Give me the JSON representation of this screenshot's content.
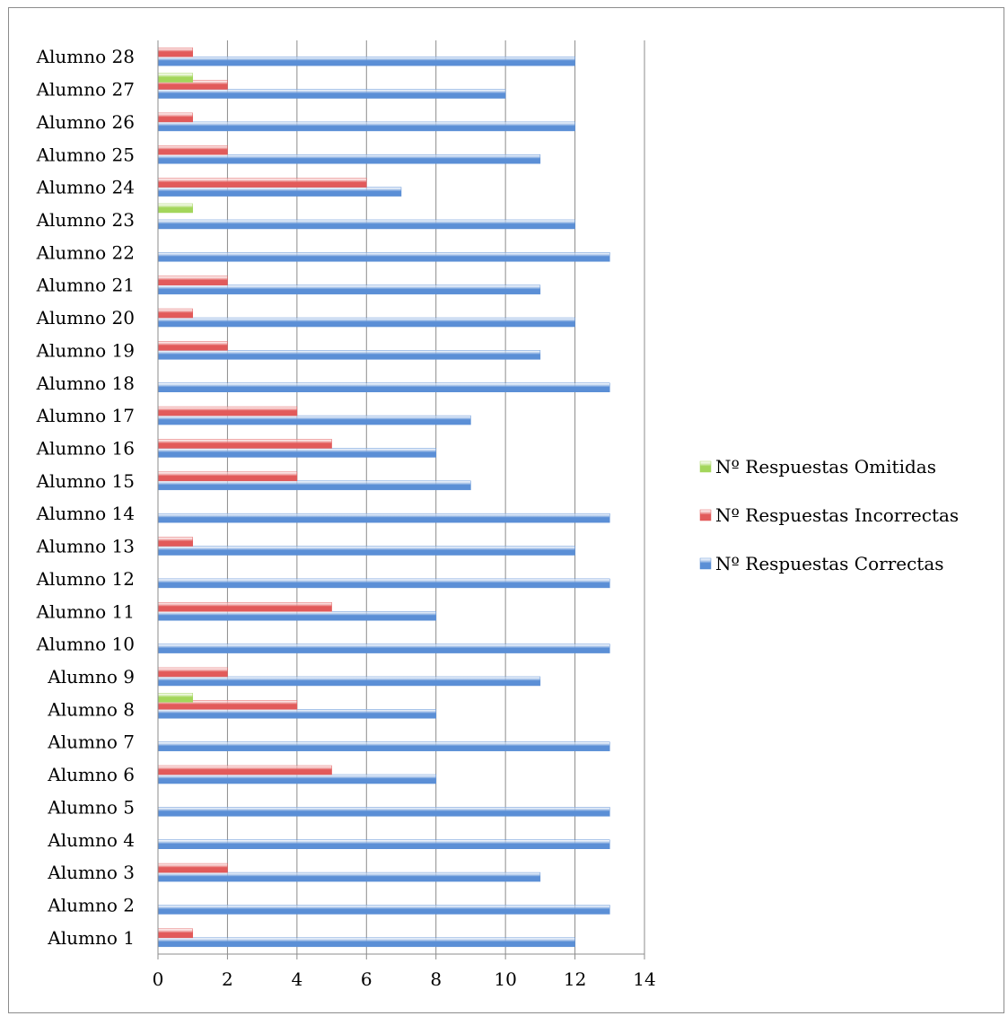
{
  "chart_data": {
    "type": "bar",
    "orientation": "horizontal",
    "categories": [
      "Alumno 1",
      "Alumno 2",
      "Alumno 3",
      "Alumno 4",
      "Alumno 5",
      "Alumno 6",
      "Alumno 7",
      "Alumno 8",
      "Alumno 9",
      "Alumno 10",
      "Alumno 11",
      "Alumno 12",
      "Alumno 13",
      "Alumno 14",
      "Alumno 15",
      "Alumno 16",
      "Alumno 17",
      "Alumno 18",
      "Alumno 19",
      "Alumno 20",
      "Alumno 21",
      "Alumno 22",
      "Alumno 23",
      "Alumno 24",
      "Alumno 25",
      "Alumno 26",
      "Alumno 27",
      "Alumno 28"
    ],
    "series": [
      {
        "name": "Nº Respuestas Correctas",
        "color": "#5b8fd6",
        "values": [
          12,
          13,
          11,
          13,
          13,
          8,
          13,
          8,
          11,
          13,
          8,
          13,
          12,
          13,
          9,
          8,
          9,
          13,
          11,
          12,
          11,
          13,
          12,
          7,
          11,
          12,
          10,
          12
        ]
      },
      {
        "name": "Nº Respuestas Incorrectas",
        "color": "#e25a5a",
        "values": [
          1,
          0,
          2,
          0,
          0,
          5,
          0,
          4,
          2,
          0,
          5,
          0,
          1,
          0,
          4,
          5,
          4,
          0,
          2,
          1,
          2,
          0,
          0,
          6,
          2,
          1,
          2,
          1
        ]
      },
      {
        "name": "Nº Respuestas Omitidas",
        "color": "#a3d65b",
        "values": [
          0,
          0,
          0,
          0,
          0,
          0,
          0,
          1,
          0,
          0,
          0,
          0,
          0,
          0,
          0,
          0,
          0,
          0,
          0,
          0,
          0,
          0,
          1,
          0,
          0,
          0,
          1,
          0
        ]
      }
    ],
    "xlim": [
      0,
      14
    ],
    "xticks": [
      0,
      2,
      4,
      6,
      8,
      10,
      12,
      14
    ],
    "grid": true,
    "legend_position": "right",
    "title": "",
    "xlabel": "",
    "ylabel": ""
  }
}
